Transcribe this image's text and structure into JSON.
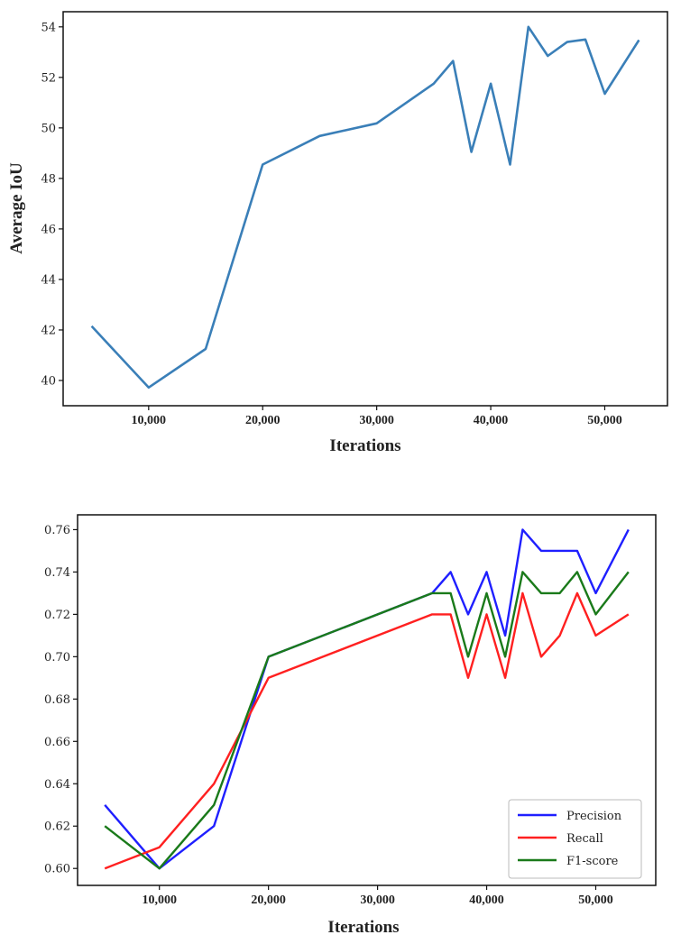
{
  "chart_data": [
    {
      "type": "line",
      "title": "",
      "xlabel": "Iterations",
      "ylabel": "Average IoU",
      "xlim": [
        2500,
        55500
      ],
      "ylim": [
        39.0,
        54.6
      ],
      "xticks": [
        10000,
        20000,
        30000,
        40000,
        50000
      ],
      "xtick_labels": [
        "10,000",
        "20,000",
        "30,000",
        "40,000",
        "50,000"
      ],
      "yticks": [
        40,
        42,
        44,
        46,
        48,
        50,
        52,
        54
      ],
      "ytick_labels": [
        "40",
        "42",
        "44",
        "46",
        "48",
        "50",
        "52",
        "54"
      ],
      "legend": false,
      "series": [
        {
          "name": "Average IoU",
          "color": "#3a7fb8",
          "x": [
            5000,
            10000,
            15000,
            20000,
            25000,
            30000,
            35000,
            36700,
            38300,
            40000,
            41700,
            43300,
            45000,
            46700,
            48300,
            50000,
            53000
          ],
          "values": [
            42.15,
            39.72,
            41.25,
            48.55,
            49.68,
            50.18,
            51.75,
            52.65,
            49.05,
            51.75,
            48.55,
            54.0,
            52.85,
            53.4,
            53.5,
            51.35,
            53.48
          ]
        }
      ]
    },
    {
      "type": "line",
      "title": "",
      "xlabel": "Iterations",
      "ylabel": "",
      "xlim": [
        2500,
        55500
      ],
      "ylim": [
        0.592,
        0.767
      ],
      "xticks": [
        10000,
        20000,
        30000,
        40000,
        50000
      ],
      "xtick_labels": [
        "10,000",
        "20,000",
        "30,000",
        "40,000",
        "50,000"
      ],
      "yticks": [
        0.6,
        0.62,
        0.64,
        0.66,
        0.68,
        0.7,
        0.72,
        0.74,
        0.76
      ],
      "ytick_labels": [
        "0.60",
        "0.62",
        "0.64",
        "0.66",
        "0.68",
        "0.70",
        "0.72",
        "0.74",
        "0.76"
      ],
      "legend": "lower-right",
      "series": [
        {
          "name": "Precision",
          "color": "#1f1fff",
          "x": [
            5000,
            10000,
            15000,
            20000,
            35000,
            36700,
            38300,
            40000,
            41700,
            43300,
            45000,
            46700,
            48300,
            50000,
            53000
          ],
          "values": [
            0.63,
            0.6,
            0.62,
            0.7,
            0.73,
            0.74,
            0.72,
            0.74,
            0.71,
            0.76,
            0.75,
            0.75,
            0.75,
            0.73,
            0.76
          ]
        },
        {
          "name": "Recall",
          "color": "#ff2020",
          "x": [
            5000,
            10000,
            15000,
            20000,
            35000,
            36700,
            38300,
            40000,
            41700,
            43300,
            45000,
            46700,
            48300,
            50000,
            53000
          ],
          "values": [
            0.6,
            0.61,
            0.64,
            0.69,
            0.72,
            0.72,
            0.69,
            0.72,
            0.69,
            0.73,
            0.7,
            0.71,
            0.73,
            0.71,
            0.72
          ]
        },
        {
          "name": "F1-score",
          "color": "#1a7a1a",
          "x": [
            5000,
            10000,
            15000,
            20000,
            35000,
            36700,
            38300,
            40000,
            41700,
            43300,
            45000,
            46700,
            48300,
            50000,
            53000
          ],
          "values": [
            0.62,
            0.6,
            0.63,
            0.7,
            0.73,
            0.73,
            0.7,
            0.73,
            0.7,
            0.74,
            0.73,
            0.73,
            0.74,
            0.72,
            0.74
          ]
        }
      ]
    }
  ]
}
